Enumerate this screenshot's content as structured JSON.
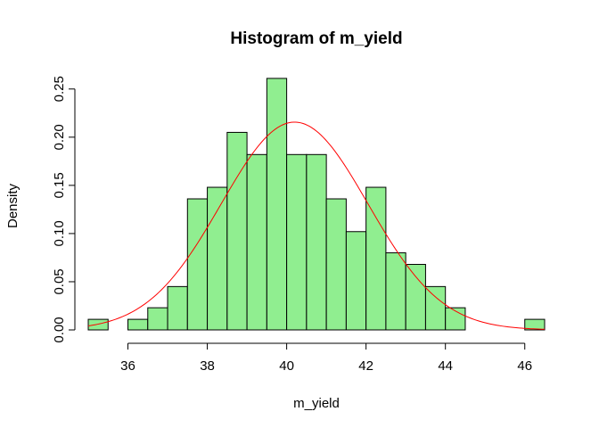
{
  "chart_data": {
    "type": "bar",
    "title": "Histogram of m_yield",
    "xlabel": "m_yield",
    "ylabel": "Density",
    "xlim": [
      35,
      46.5
    ],
    "ylim": [
      0,
      0.26
    ],
    "x_ticks": [
      36,
      38,
      40,
      42,
      44,
      46
    ],
    "x_tick_labels": [
      "36",
      "38",
      "40",
      "42",
      "44",
      "46"
    ],
    "y_ticks": [
      0,
      0.05,
      0.1,
      0.15,
      0.2,
      0.25
    ],
    "y_tick_labels": [
      "0.00",
      "0.05",
      "0.10",
      "0.15",
      "0.20",
      "0.25"
    ],
    "bin_edges": [
      35,
      35.5,
      36,
      36.5,
      37,
      37.5,
      38,
      38.5,
      39,
      39.5,
      40,
      40.5,
      41,
      41.5,
      42,
      42.5,
      43,
      43.5,
      44,
      44.5,
      45,
      45.5,
      46,
      46.5
    ],
    "values": [
      0.011,
      0,
      0.011,
      0.023,
      0.045,
      0.136,
      0.148,
      0.205,
      0.182,
      0.261,
      0.182,
      0.182,
      0.136,
      0.102,
      0.148,
      0.08,
      0.068,
      0.045,
      0.023,
      0,
      0,
      0,
      0.011
    ],
    "bar_color": "#90ee90",
    "bar_border_color": "#000000",
    "density_curve": {
      "type": "normal",
      "mean": 40.2,
      "sd": 1.85,
      "color": "#ff0000"
    },
    "grid": false,
    "legend": "none"
  }
}
